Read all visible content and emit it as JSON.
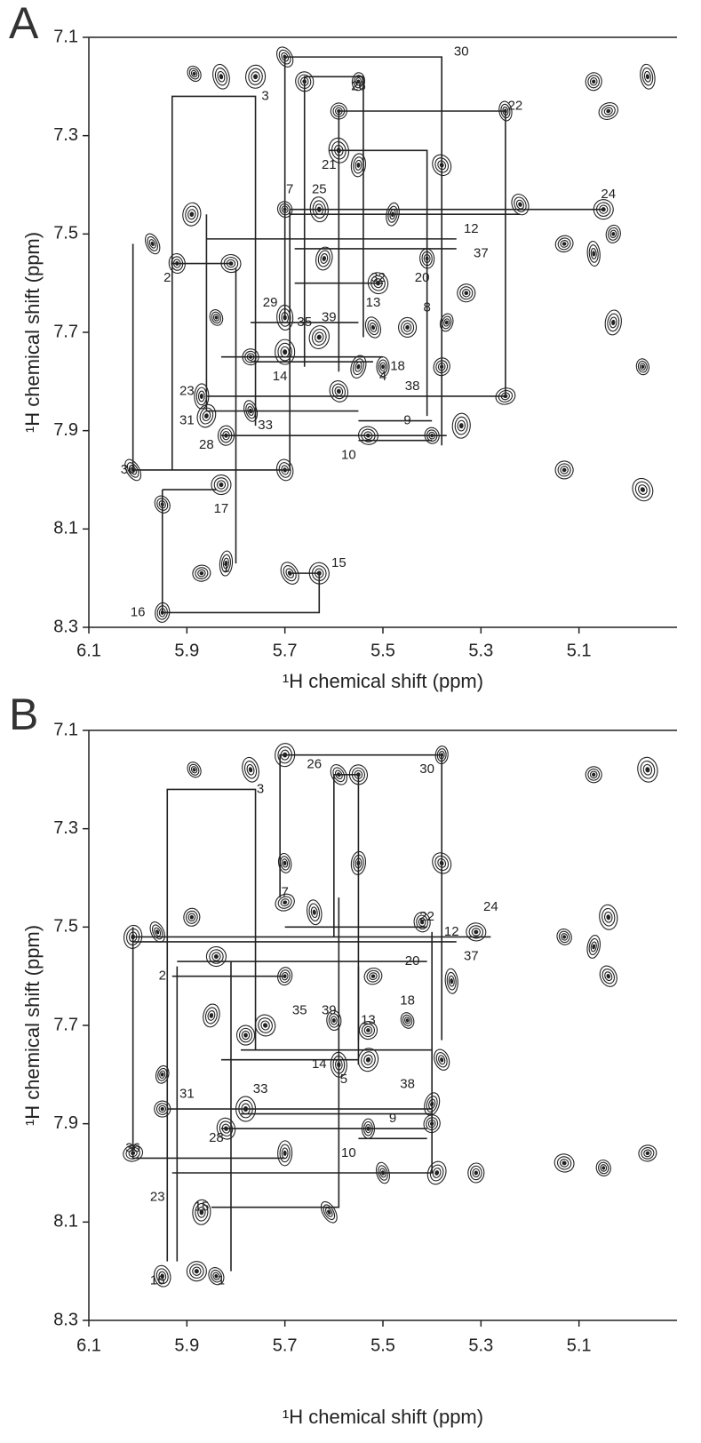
{
  "chart_data": [
    {
      "type": "scatter",
      "panel_label": "A",
      "xlabel": "¹H chemical shift (ppm)",
      "ylabel": "¹H chemical shift (ppm)",
      "xlim": [
        6.1,
        4.9
      ],
      "ylim": [
        8.3,
        7.1
      ],
      "xticks": [
        6.1,
        5.9,
        5.7,
        5.5,
        5.3,
        5.1
      ],
      "yticks": [
        7.1,
        7.3,
        7.5,
        7.7,
        7.9,
        8.1,
        8.3
      ],
      "color": "#222",
      "grid": false,
      "peaks": {
        "x": [
          5.885,
          5.83,
          5.76,
          5.7,
          5.66,
          5.55,
          5.59,
          5.59,
          5.55,
          5.38,
          5.25,
          5.07,
          5.04,
          4.96,
          5.89,
          5.97,
          5.92,
          5.81,
          5.7,
          5.63,
          5.48,
          5.22,
          5.05,
          5.03,
          5.13,
          5.07,
          5.62,
          5.51,
          5.41,
          5.33,
          5.84,
          5.7,
          5.63,
          5.52,
          5.45,
          5.37,
          5.77,
          5.7,
          5.55,
          5.59,
          5.5,
          5.38,
          5.25,
          5.87,
          5.86,
          5.77,
          5.82,
          5.53,
          5.4,
          5.34,
          6.01,
          5.7,
          5.83,
          5.95,
          5.87,
          5.82,
          5.69,
          5.63,
          5.95,
          5.13,
          4.97,
          5.03,
          4.97
        ],
        "y": [
          7.174,
          7.18,
          7.18,
          7.14,
          7.19,
          7.19,
          7.25,
          7.33,
          7.36,
          7.36,
          7.25,
          7.19,
          7.25,
          7.18,
          7.46,
          7.52,
          7.56,
          7.56,
          7.45,
          7.45,
          7.46,
          7.44,
          7.45,
          7.5,
          7.52,
          7.54,
          7.55,
          7.6,
          7.55,
          7.62,
          7.67,
          7.67,
          7.71,
          7.69,
          7.69,
          7.68,
          7.75,
          7.74,
          7.77,
          7.82,
          7.77,
          7.77,
          7.83,
          7.83,
          7.87,
          7.86,
          7.91,
          7.91,
          7.91,
          7.89,
          7.98,
          7.98,
          8.01,
          8.05,
          8.19,
          8.17,
          8.19,
          8.19,
          8.27,
          7.98,
          7.77,
          7.68,
          8.02
        ]
      },
      "links": [
        {
          "x": [
            5.38,
            5.38,
            5.7,
            5.7
          ],
          "y": [
            7.93,
            7.14,
            7.14,
            7.67
          ]
        },
        {
          "x": [
            5.93,
            5.93,
            5.76,
            5.76
          ],
          "y": [
            7.98,
            7.22,
            7.22,
            7.89
          ]
        },
        {
          "x": [
            5.66,
            5.66,
            5.54,
            5.54
          ],
          "y": [
            7.77,
            7.18,
            7.18,
            7.71
          ]
        },
        {
          "x": [
            5.59,
            5.59,
            5.25,
            5.25
          ],
          "y": [
            7.78,
            7.25,
            7.25,
            7.83
          ]
        },
        {
          "x": [
            5.61,
            5.41,
            5.41
          ],
          "y": [
            7.33,
            7.33,
            7.87
          ]
        },
        {
          "x": [
            5.69,
            5.05
          ],
          "y": [
            7.45,
            7.45
          ]
        },
        {
          "x": [
            5.69,
            5.22
          ],
          "y": [
            7.46,
            7.46
          ]
        },
        {
          "x": [
            6.01,
            6.01,
            5.69,
            5.69
          ],
          "y": [
            7.52,
            7.98,
            7.98,
            7.45
          ]
        },
        {
          "x": [
            5.95,
            5.95,
            5.63,
            5.63
          ],
          "y": [
            8.02,
            8.27,
            8.27,
            8.19
          ]
        },
        {
          "x": [
            5.69,
            5.63
          ],
          "y": [
            8.19,
            8.19
          ]
        },
        {
          "x": [
            5.93,
            5.81
          ],
          "y": [
            7.56,
            7.56
          ]
        },
        {
          "x": [
            5.95,
            5.84
          ],
          "y": [
            8.02,
            8.02
          ]
        },
        {
          "x": [
            5.8,
            5.8
          ],
          "y": [
            7.57,
            8.17
          ]
        },
        {
          "x": [
            5.86,
            5.25
          ],
          "y": [
            7.83,
            7.83
          ]
        },
        {
          "x": [
            5.86,
            5.55
          ],
          "y": [
            7.86,
            7.86
          ]
        },
        {
          "x": [
            5.83,
            5.37
          ],
          "y": [
            7.91,
            7.91
          ]
        },
        {
          "x": [
            5.55,
            5.4
          ],
          "y": [
            7.88,
            7.88
          ]
        },
        {
          "x": [
            5.55,
            5.4
          ],
          "y": [
            7.92,
            7.92
          ]
        },
        {
          "x": [
            5.68,
            5.5
          ],
          "y": [
            7.6,
            7.6
          ]
        },
        {
          "x": [
            5.86,
            5.35
          ],
          "y": [
            7.51,
            7.51
          ]
        },
        {
          "x": [
            5.68,
            5.35
          ],
          "y": [
            7.53,
            7.53
          ]
        },
        {
          "x": [
            5.83,
            5.5
          ],
          "y": [
            7.75,
            7.75
          ]
        },
        {
          "x": [
            5.77,
            5.52
          ],
          "y": [
            7.76,
            7.76
          ]
        },
        {
          "x": [
            5.86,
            5.86
          ],
          "y": [
            7.46,
            7.86
          ]
        },
        {
          "x": [
            5.77,
            5.55
          ],
          "y": [
            7.68,
            7.68
          ]
        }
      ],
      "peak_labels": [
        {
          "text": "30",
          "x": 5.34,
          "y": 7.13
        },
        {
          "text": "3",
          "x": 5.74,
          "y": 7.22
        },
        {
          "text": "26",
          "x": 5.55,
          "y": 7.2
        },
        {
          "text": "22",
          "x": 5.23,
          "y": 7.24
        },
        {
          "text": "21",
          "x": 5.61,
          "y": 7.36
        },
        {
          "text": "24",
          "x": 5.04,
          "y": 7.42
        },
        {
          "text": "7",
          "x": 5.69,
          "y": 7.41
        },
        {
          "text": "25",
          "x": 5.63,
          "y": 7.41
        },
        {
          "text": "12",
          "x": 5.32,
          "y": 7.49
        },
        {
          "text": "37",
          "x": 5.3,
          "y": 7.54
        },
        {
          "text": "2",
          "x": 5.94,
          "y": 7.59
        },
        {
          "text": "32",
          "x": 5.51,
          "y": 7.59
        },
        {
          "text": "20",
          "x": 5.42,
          "y": 7.59
        },
        {
          "text": "29",
          "x": 5.73,
          "y": 7.64
        },
        {
          "text": "13",
          "x": 5.52,
          "y": 7.64
        },
        {
          "text": "8",
          "x": 5.41,
          "y": 7.65
        },
        {
          "text": "35",
          "x": 5.66,
          "y": 7.68
        },
        {
          "text": "39",
          "x": 5.61,
          "y": 7.67
        },
        {
          "text": "14",
          "x": 5.71,
          "y": 7.79
        },
        {
          "text": "4",
          "x": 5.5,
          "y": 7.79
        },
        {
          "text": "18",
          "x": 5.47,
          "y": 7.77
        },
        {
          "text": "38",
          "x": 5.44,
          "y": 7.81
        },
        {
          "text": "23",
          "x": 5.9,
          "y": 7.82
        },
        {
          "text": "31",
          "x": 5.9,
          "y": 7.88
        },
        {
          "text": "33",
          "x": 5.74,
          "y": 7.89
        },
        {
          "text": "28",
          "x": 5.86,
          "y": 7.93
        },
        {
          "text": "9",
          "x": 5.45,
          "y": 7.88
        },
        {
          "text": "10",
          "x": 5.57,
          "y": 7.95
        },
        {
          "text": "36",
          "x": 6.02,
          "y": 7.98
        },
        {
          "text": "17",
          "x": 5.83,
          "y": 8.06
        },
        {
          "text": "1",
          "x": 5.82,
          "y": 8.18
        },
        {
          "text": "15",
          "x": 5.59,
          "y": 8.17
        },
        {
          "text": "16",
          "x": 6.0,
          "y": 8.27
        }
      ]
    },
    {
      "type": "scatter",
      "panel_label": "B",
      "xlabel": "¹H chemical shift (ppm)",
      "ylabel": "¹H chemical shift (ppm)",
      "xlim": [
        6.1,
        4.9
      ],
      "ylim": [
        8.3,
        7.1
      ],
      "xticks": [
        6.1,
        5.9,
        5.7,
        5.5,
        5.3,
        5.1
      ],
      "yticks": [
        7.1,
        7.3,
        7.5,
        7.7,
        7.9,
        8.1,
        8.3
      ],
      "color": "#222",
      "grid": false,
      "peaks": {
        "x": [
          5.885,
          5.77,
          5.7,
          5.59,
          5.55,
          5.38,
          5.07,
          4.96,
          5.55,
          5.38,
          5.7,
          5.89,
          5.7,
          5.64,
          6.01,
          5.96,
          5.42,
          5.31,
          5.13,
          5.04,
          5.07,
          5.04,
          5.84,
          5.7,
          5.52,
          5.36,
          5.85,
          5.74,
          5.6,
          5.53,
          5.45,
          5.59,
          5.53,
          5.38,
          5.78,
          5.95,
          5.95,
          5.78,
          5.4,
          5.82,
          5.53,
          5.4,
          6.01,
          5.7,
          5.39,
          5.5,
          5.31,
          5.13,
          5.05,
          5.87,
          5.61,
          5.95,
          5.88,
          5.84,
          4.96
        ],
        "y": [
          7.18,
          7.18,
          7.15,
          7.19,
          7.19,
          7.15,
          7.19,
          7.18,
          7.37,
          7.37,
          7.37,
          7.48,
          7.45,
          7.47,
          7.52,
          7.51,
          7.49,
          7.51,
          7.52,
          7.48,
          7.54,
          7.6,
          7.56,
          7.6,
          7.6,
          7.61,
          7.68,
          7.7,
          7.69,
          7.71,
          7.69,
          7.78,
          7.77,
          7.77,
          7.72,
          7.8,
          7.87,
          7.87,
          7.86,
          7.91,
          7.91,
          7.9,
          7.96,
          7.96,
          8.0,
          8.0,
          8.0,
          7.98,
          7.99,
          8.08,
          8.08,
          8.21,
          8.2,
          8.21,
          7.96
        ]
      },
      "links": [
        {
          "x": [
            5.71,
            5.71,
            5.38,
            5.38
          ],
          "y": [
            7.44,
            7.15,
            7.15,
            7.73
          ]
        },
        {
          "x": [
            5.6,
            5.6,
            5.55,
            5.55
          ],
          "y": [
            7.52,
            7.19,
            7.19,
            7.73
          ]
        },
        {
          "x": [
            5.94,
            5.94,
            5.76,
            5.76
          ],
          "y": [
            8.18,
            7.22,
            7.22,
            7.75
          ]
        },
        {
          "x": [
            6.01,
            6.01,
            5.7
          ],
          "y": [
            7.5,
            7.97,
            7.97
          ]
        },
        {
          "x": [
            5.93,
            5.4,
            5.4
          ],
          "y": [
            8.0,
            8.0,
            7.51
          ]
        },
        {
          "x": [
            5.85,
            5.59,
            5.59
          ],
          "y": [
            8.07,
            8.07,
            7.44
          ]
        },
        {
          "x": [
            5.92,
            5.92
          ],
          "y": [
            8.18,
            7.58
          ]
        },
        {
          "x": [
            5.81,
            5.81
          ],
          "y": [
            8.2,
            7.57
          ]
        },
        {
          "x": [
            6.01,
            5.28
          ],
          "y": [
            7.52,
            7.52
          ]
        },
        {
          "x": [
            6.01,
            5.35
          ],
          "y": [
            7.53,
            7.53
          ]
        },
        {
          "x": [
            5.7,
            5.41
          ],
          "y": [
            7.5,
            7.5
          ]
        },
        {
          "x": [
            5.92,
            5.41
          ],
          "y": [
            7.57,
            7.57
          ]
        },
        {
          "x": [
            5.93,
            5.7
          ],
          "y": [
            7.6,
            7.6
          ]
        },
        {
          "x": [
            5.79,
            5.4
          ],
          "y": [
            7.75,
            7.75
          ]
        },
        {
          "x": [
            5.83,
            5.55
          ],
          "y": [
            7.77,
            7.77
          ]
        },
        {
          "x": [
            5.94,
            5.4
          ],
          "y": [
            7.87,
            7.87
          ]
        },
        {
          "x": [
            5.79,
            5.4
          ],
          "y": [
            7.88,
            7.88
          ]
        },
        {
          "x": [
            5.83,
            5.41
          ],
          "y": [
            7.91,
            7.91
          ]
        },
        {
          "x": [
            5.55,
            5.41
          ],
          "y": [
            7.93,
            7.93
          ]
        },
        {
          "x": [
            5.55,
            5.55
          ],
          "y": [
            7.58,
            7.78
          ]
        }
      ],
      "peak_labels": [
        {
          "text": "26",
          "x": 5.64,
          "y": 7.17
        },
        {
          "text": "30",
          "x": 5.41,
          "y": 7.18
        },
        {
          "text": "3",
          "x": 5.75,
          "y": 7.22
        },
        {
          "text": "7",
          "x": 5.7,
          "y": 7.43
        },
        {
          "text": "22",
          "x": 5.41,
          "y": 7.48
        },
        {
          "text": "12",
          "x": 5.36,
          "y": 7.51
        },
        {
          "text": "24",
          "x": 5.28,
          "y": 7.46
        },
        {
          "text": "37",
          "x": 5.32,
          "y": 7.56
        },
        {
          "text": "20",
          "x": 5.44,
          "y": 7.57
        },
        {
          "text": "2",
          "x": 5.95,
          "y": 7.6
        },
        {
          "text": "18",
          "x": 5.45,
          "y": 7.65
        },
        {
          "text": "13",
          "x": 5.53,
          "y": 7.69
        },
        {
          "text": "35",
          "x": 5.67,
          "y": 7.67
        },
        {
          "text": "39",
          "x": 5.61,
          "y": 7.67
        },
        {
          "text": "14",
          "x": 5.63,
          "y": 7.78
        },
        {
          "text": "5",
          "x": 5.58,
          "y": 7.81
        },
        {
          "text": "38",
          "x": 5.45,
          "y": 7.82
        },
        {
          "text": "31",
          "x": 5.9,
          "y": 7.84
        },
        {
          "text": "33",
          "x": 5.75,
          "y": 7.83
        },
        {
          "text": "9",
          "x": 5.48,
          "y": 7.89
        },
        {
          "text": "28",
          "x": 5.84,
          "y": 7.93
        },
        {
          "text": "10",
          "x": 5.57,
          "y": 7.96
        },
        {
          "text": "36",
          "x": 6.01,
          "y": 7.95
        },
        {
          "text": "23",
          "x": 5.96,
          "y": 8.05
        },
        {
          "text": "15",
          "x": 5.87,
          "y": 8.07
        },
        {
          "text": "16",
          "x": 5.96,
          "y": 8.22
        },
        {
          "text": "1",
          "x": 5.83,
          "y": 8.22
        }
      ]
    }
  ]
}
